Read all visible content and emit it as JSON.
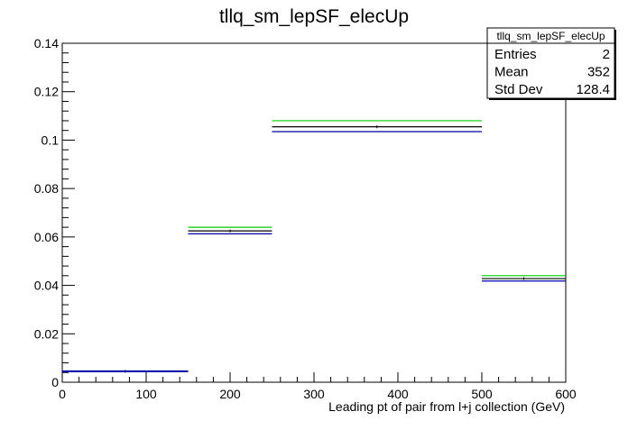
{
  "chart_data": {
    "type": "histogram",
    "title": "tllq_sm_lepSF_elecUp",
    "xlabel": "Leading pt of pair from l+j collection (GeV)",
    "ylabel": "",
    "xlim": [
      0,
      600
    ],
    "ylim": [
      0,
      0.14
    ],
    "x_ticks": [
      "0",
      "100",
      "200",
      "300",
      "400",
      "500",
      "600"
    ],
    "y_ticks": [
      "0",
      "0.02",
      "0.04",
      "0.06",
      "0.08",
      "0.1",
      "0.12",
      "0.14"
    ],
    "bin_edges": [
      0,
      150,
      250,
      500,
      600
    ],
    "series": [
      {
        "color": "#00cc00",
        "values": [
          0.0045,
          0.064,
          0.108,
          0.044
        ]
      },
      {
        "color": "#000000",
        "values": [
          0.0045,
          0.0625,
          0.1055,
          0.0428
        ]
      },
      {
        "color": "#0000aa",
        "values": [
          0.0045,
          0.0613,
          0.1035,
          0.0418
        ]
      }
    ],
    "stats_box": {
      "name": "tllq_sm_lepSF_elecUp",
      "rows": [
        {
          "label": "Entries",
          "value": "2"
        },
        {
          "label": "Mean",
          "value": "352"
        },
        {
          "label": "Std Dev",
          "value": "128.4"
        }
      ]
    }
  }
}
